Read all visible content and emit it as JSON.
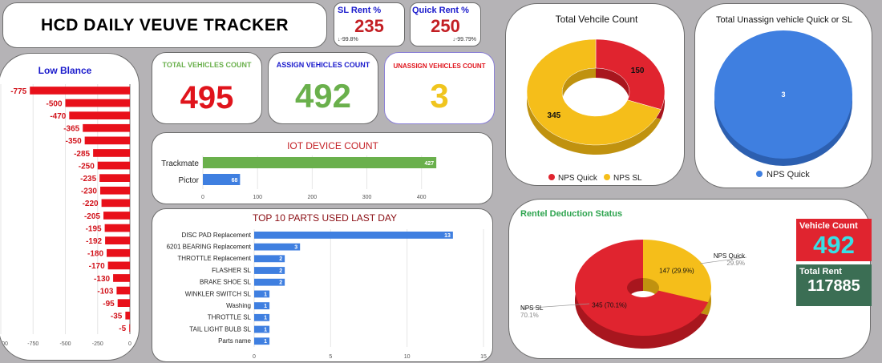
{
  "header": {
    "title": "HCD DAILY VEUVE TRACKER"
  },
  "sl_rent": {
    "label": "SL Rent %",
    "value": "235",
    "change": "-99.8%"
  },
  "quick_rent": {
    "label": "Quick Rent %",
    "value": "250",
    "change": "-99.79%"
  },
  "total_vehicles": {
    "label": "TOTAL VEHICLES COUNT",
    "value": "495"
  },
  "assign_vehicles": {
    "label": "ASSIGN VEHICLES COUNT",
    "value": "492"
  },
  "unassign_vehicles": {
    "label": "UNASSIGN VEHICLES COUNT",
    "value": "3"
  },
  "vehicle_count_box": {
    "label": "Vehicle Count",
    "value": "492"
  },
  "total_rent_box": {
    "label": "Total Rent",
    "value": "117885"
  },
  "colors": {
    "red": "#e0242f",
    "yellow": "#f5be1a",
    "green": "#6ab04c",
    "blue": "#3f7fe0",
    "teal_box": "#3b6e54",
    "cyan_text": "#38e0e6"
  },
  "chart_data": [
    {
      "type": "bar",
      "orientation": "horizontal",
      "title": "Low Blance",
      "categories": [
        "",
        "",
        "",
        "",
        "",
        "",
        "",
        "",
        "",
        "",
        "",
        "",
        "",
        "",
        "",
        "",
        "",
        "",
        "",
        ""
      ],
      "values": [
        -775,
        -500,
        -470,
        -365,
        -350,
        -285,
        -250,
        -235,
        -230,
        -220,
        -205,
        -195,
        -192,
        -180,
        -170,
        -130,
        -103,
        -95,
        -35,
        -5
      ],
      "value_labels": [
        "-775",
        "-500",
        "-470",
        "-365",
        "-350",
        "-285",
        "-250",
        "-235",
        "-230",
        "-220",
        "-205",
        "-195",
        "-192",
        "-180",
        "-170",
        "-130",
        "-103",
        "-95",
        "-35",
        "-5"
      ],
      "xlim": [
        -1000,
        0
      ],
      "xticks": [
        "-1000",
        "-750",
        "-500",
        "-250",
        "0"
      ]
    },
    {
      "type": "donut",
      "title": "Total Vehcile Count",
      "slices": [
        {
          "name": "NPS Quick",
          "value": 150
        },
        {
          "name": "NPS SL",
          "value": 345
        }
      ],
      "legend": [
        "NPS Quick",
        "NPS SL"
      ],
      "legend_position": "bottom"
    },
    {
      "type": "pie",
      "title": "Total Unassign vehicle Quick or SL",
      "slices": [
        {
          "name": "NPS Quick",
          "value": 3
        }
      ],
      "legend": [
        "NPS Quick"
      ],
      "legend_position": "bottom"
    },
    {
      "type": "bar",
      "orientation": "horizontal",
      "title": "IOT DEVICE COUNT",
      "categories": [
        "Trackmate",
        "Pictor"
      ],
      "values": [
        427,
        68
      ],
      "value_labels": [
        "427",
        "68"
      ],
      "xlim": [
        0,
        440
      ],
      "xticks": [
        "0",
        "100",
        "200",
        "300",
        "400"
      ]
    },
    {
      "type": "bar",
      "orientation": "horizontal",
      "title": "TOP 10 PARTS USED LAST DAY",
      "categories": [
        "DISC PAD Replacement",
        "6201 BEARING Replacement",
        "THROTTLE Replacement",
        "FLASHER SL",
        "BRAKE SHOE SL",
        "WINKLER SWITCH SL",
        "Washing",
        "THROTTLE SL",
        "TAIL LIGHT BULB SL",
        "Parts name"
      ],
      "values": [
        13,
        3,
        2,
        2,
        2,
        1,
        1,
        1,
        1,
        1
      ],
      "value_labels": [
        "13",
        "3",
        "2",
        "2",
        "2",
        "1",
        "1",
        "1",
        "1",
        "1"
      ],
      "xlim": [
        0,
        15
      ],
      "xticks": [
        "0",
        "5",
        "10",
        "15"
      ]
    },
    {
      "type": "pie",
      "title": "Rentel Deduction Status",
      "slices": [
        {
          "name": "NPS Quick",
          "value": 147,
          "label": "147 (29.9%)",
          "pct": "29.9%"
        },
        {
          "name": "NPS SL",
          "value": 345,
          "label": "345 (70.1%)",
          "pct": "70.1%"
        }
      ]
    }
  ]
}
